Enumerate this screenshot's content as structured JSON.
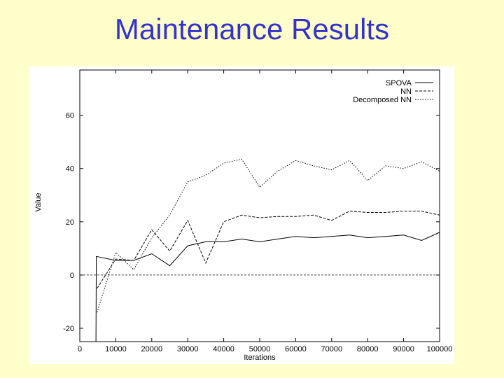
{
  "slide": {
    "title": "Maintenance Results"
  },
  "chart_data": {
    "type": "line",
    "xlabel": "Iterations",
    "ylabel": "Value",
    "xlim": [
      0,
      100000
    ],
    "ylim": [
      -25,
      77
    ],
    "xticks": [
      0,
      10000,
      20000,
      30000,
      40000,
      50000,
      60000,
      70000,
      80000,
      90000,
      100000
    ],
    "xtick_labels": [
      "0",
      "10000",
      "20000",
      "30000",
      "40000",
      "50000",
      "60000",
      "70000",
      "80000",
      "90000",
      "100000"
    ],
    "yticks": [
      -20,
      0,
      20,
      40,
      60
    ],
    "ytick_labels": [
      "-20",
      "0",
      "20",
      "40",
      "60"
    ],
    "zero_line": true,
    "grid": false,
    "legend_position": "top-right",
    "series": [
      {
        "name": "SPOVA",
        "style": "solid",
        "x": [
          4500,
          4600,
          10000,
          15000,
          20000,
          25000,
          30000,
          35000,
          40000,
          45000,
          50000,
          55000,
          60000,
          65000,
          70000,
          75000,
          80000,
          85000,
          90000,
          95000,
          100000
        ],
        "y": [
          -25,
          7,
          5.5,
          5.5,
          8,
          3.5,
          11,
          12.5,
          12.5,
          13.5,
          12.5,
          13.5,
          14.5,
          14,
          14.5,
          15,
          14,
          14.5,
          15,
          13,
          16
        ]
      },
      {
        "name": "NN",
        "style": "dashed",
        "x": [
          4800,
          10000,
          15000,
          20000,
          25000,
          30000,
          35000,
          40000,
          45000,
          50000,
          55000,
          60000,
          65000,
          70000,
          75000,
          80000,
          85000,
          90000,
          95000,
          100000
        ],
        "y": [
          -5,
          6,
          5.5,
          17,
          9,
          20.5,
          4.5,
          20,
          22.5,
          21.5,
          22,
          22,
          22.5,
          20.5,
          24,
          23.5,
          23.5,
          24,
          24,
          22.5
        ]
      },
      {
        "name": "Decomposed NN",
        "style": "dotted",
        "x": [
          4800,
          10000,
          15000,
          20000,
          25000,
          30000,
          35000,
          40000,
          45000,
          50000,
          55000,
          60000,
          65000,
          70000,
          75000,
          80000,
          85000,
          90000,
          95000,
          100000
        ],
        "y": [
          -14,
          8.5,
          2,
          14,
          22.5,
          35,
          37.5,
          42,
          43.5,
          33,
          39,
          43,
          41,
          39.5,
          43,
          35.5,
          41,
          40,
          42.5,
          39
        ]
      }
    ]
  }
}
